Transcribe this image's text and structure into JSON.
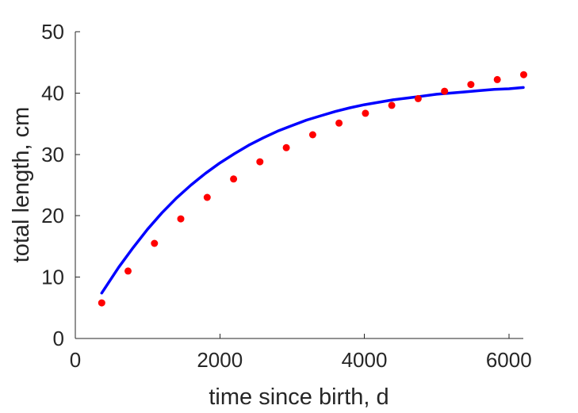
{
  "chart_data": {
    "type": "scatter",
    "title": "",
    "xlabel": "time since birth, d",
    "ylabel": "total length, cm",
    "xlim": [
      0,
      6200
    ],
    "ylim": [
      0,
      50
    ],
    "x_ticks": [
      0,
      2000,
      4000,
      6000
    ],
    "y_ticks": [
      0,
      10,
      20,
      30,
      40,
      50
    ],
    "x_tick_labels": [
      "0",
      "2000",
      "4000",
      "6000"
    ],
    "y_tick_labels": [
      "0",
      "10",
      "20",
      "30",
      "40",
      "50"
    ],
    "grid": false,
    "series": [
      {
        "kind": "scatter",
        "color": "#ff0000",
        "x": [
          365,
          730,
          1095,
          1460,
          1825,
          2190,
          2555,
          2920,
          3285,
          3650,
          4015,
          4380,
          4745,
          5110,
          5475,
          5840,
          6205
        ],
        "y": [
          5.8,
          11.0,
          15.5,
          19.5,
          23.0,
          26.0,
          28.8,
          31.1,
          33.2,
          35.1,
          36.7,
          38.0,
          39.1,
          40.3,
          41.4,
          42.2,
          43.0
        ]
      },
      {
        "kind": "line",
        "color": "#0000ff",
        "x": [
          365,
          600,
          800,
          1000,
          1200,
          1400,
          1600,
          1800,
          2000,
          2200,
          2400,
          2600,
          2800,
          3000,
          3200,
          3400,
          3600,
          3800,
          4000,
          4200,
          4400,
          4600,
          4800,
          5000,
          5200,
          5400,
          5600,
          5800,
          6000,
          6200
        ],
        "y": [
          7.4,
          11.6,
          14.8,
          17.8,
          20.5,
          22.9,
          25.0,
          26.9,
          28.6,
          30.1,
          31.5,
          32.7,
          33.8,
          34.7,
          35.6,
          36.3,
          37.0,
          37.6,
          38.1,
          38.5,
          38.9,
          39.2,
          39.5,
          39.8,
          40.0,
          40.2,
          40.4,
          40.6,
          40.7,
          40.9
        ]
      }
    ]
  }
}
